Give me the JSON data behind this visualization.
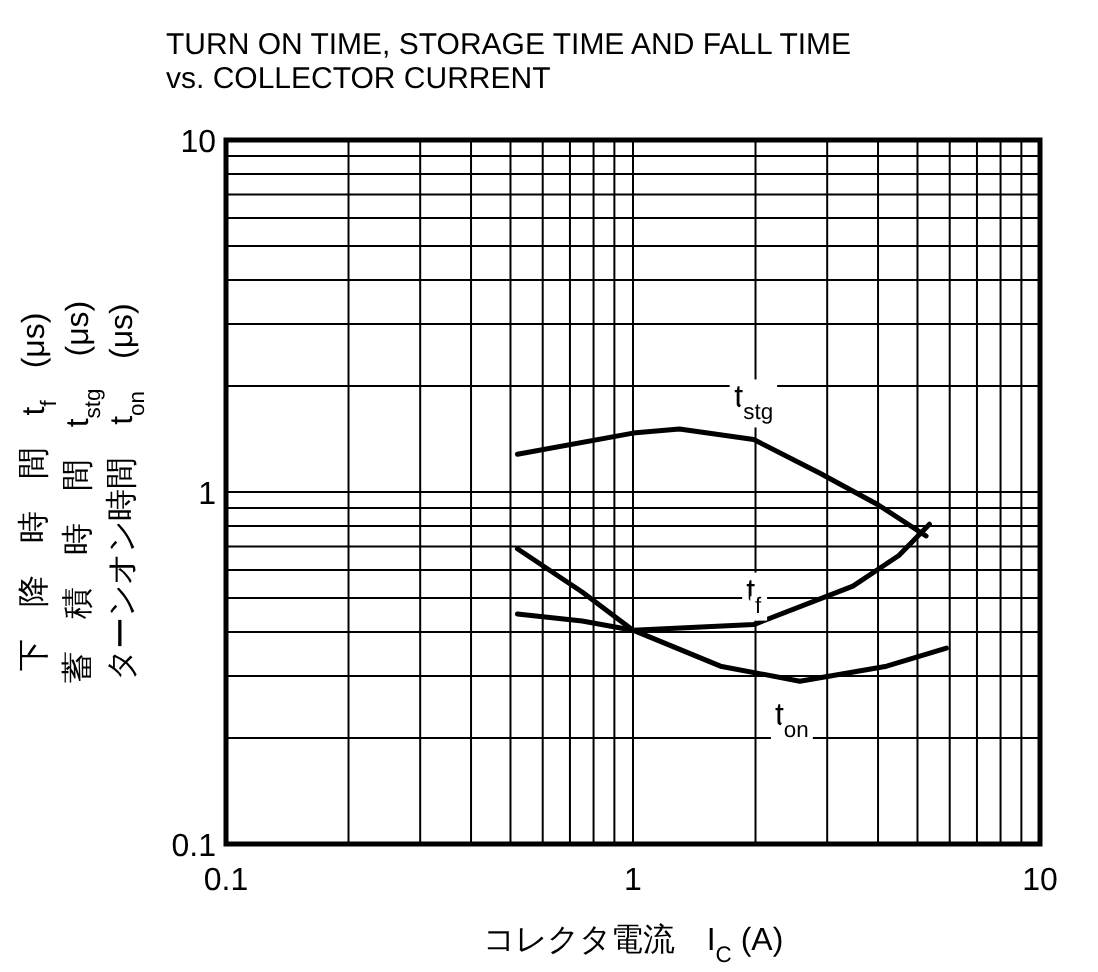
{
  "chart_data": {
    "type": "line",
    "title": "TURN ON TIME, STORAGE TIME AND FALL TIME\nvs. COLLECTOR CURRENT",
    "xlabel": "コレクタ電流　I$_{C}$ (A)",
    "ylabel": "下　降　時　間　t$_{f}$　(μs)\n蓄　積　時　間　t$_{stg}$　(μs)\nターンオン時間　t$_{on}$　(μs)",
    "log": "xy",
    "grid": true,
    "line_style": "solid",
    "xlim": [
      0.1,
      10
    ],
    "ylim": [
      0.1,
      10
    ],
    "xticks": [
      0.1,
      1,
      10
    ],
    "yticks": [
      0.1,
      1,
      10
    ],
    "series": [
      {
        "name": "t$_{stg}$",
        "color": "#000000",
        "x": [
          0.52,
          1.0,
          1.3,
          1.98,
          2.88,
          4.0,
          5.25
        ],
        "values": [
          1.28,
          1.47,
          1.51,
          1.41,
          1.13,
          0.92,
          0.75
        ]
      },
      {
        "name": "t$_{f}$",
        "color": "#000000",
        "x": [
          0.52,
          0.75,
          1.0,
          1.98,
          3.47,
          4.5,
          5.35
        ],
        "values": [
          0.45,
          0.43,
          0.405,
          0.42,
          0.54,
          0.66,
          0.81
        ]
      },
      {
        "name": "t$_{on}$",
        "color": "#000000",
        "x": [
          0.52,
          0.75,
          1.0,
          1.64,
          2.57,
          4.2,
          5.89
        ],
        "values": [
          0.69,
          0.52,
          0.405,
          0.32,
          0.29,
          0.32,
          0.36
        ]
      }
    ]
  }
}
